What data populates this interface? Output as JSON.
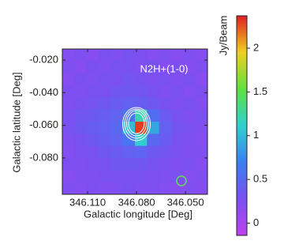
{
  "chart_data": {
    "type": "heatmap",
    "annotation": "N2H+(1-0)",
    "x_label": "Galactic longitude [Deg]",
    "y_label": "Galactic latitude [Deg]",
    "colorbar_label": "Jy/Beam",
    "xlim": [
      346.1255,
      346.0365
    ],
    "ylim": [
      -0.1023,
      -0.0132
    ],
    "xticks": [
      {
        "value": 346.11,
        "label": "346.110"
      },
      {
        "value": 346.08,
        "label": "346.080"
      },
      {
        "value": 346.05,
        "label": "346.050"
      }
    ],
    "yticks": [
      {
        "value": -0.02,
        "label": "-0.020"
      },
      {
        "value": -0.04,
        "label": "-0.040"
      },
      {
        "value": -0.06,
        "label": "-0.060"
      },
      {
        "value": -0.08,
        "label": "-0.080"
      }
    ],
    "clim": [
      -0.14,
      2.37
    ],
    "cticks": [
      0,
      0.5,
      1,
      1.5,
      2
    ],
    "colormap": [
      "#c040f0",
      "#7a50f0",
      "#3a80f0",
      "#30d0d0",
      "#60e040",
      "#f0d020",
      "#e02020"
    ],
    "z": [
      [
        0.22,
        0.25,
        0.2,
        0.28,
        0.24,
        0.3,
        0.26,
        0.22,
        0.25,
        0.2,
        0.24,
        0.22
      ],
      [
        0.25,
        0.2,
        0.27,
        0.24,
        0.3,
        0.28,
        0.25,
        0.3,
        0.22,
        0.26,
        0.21,
        0.25
      ],
      [
        0.2,
        0.28,
        0.25,
        0.3,
        0.27,
        0.32,
        0.3,
        0.26,
        0.28,
        0.24,
        0.27,
        0.2
      ],
      [
        0.26,
        0.24,
        0.3,
        0.28,
        0.33,
        0.35,
        0.33,
        0.3,
        0.25,
        0.28,
        0.22,
        0.26
      ],
      [
        0.24,
        0.3,
        0.32,
        0.35,
        0.38,
        0.42,
        0.4,
        0.35,
        0.3,
        0.26,
        0.28,
        0.23
      ],
      [
        0.3,
        0.33,
        0.36,
        0.4,
        0.45,
        0.6,
        1.2,
        0.55,
        0.38,
        0.3,
        0.25,
        0.27
      ],
      [
        0.28,
        0.35,
        0.4,
        0.42,
        0.5,
        1.0,
        2.3,
        0.9,
        0.42,
        0.32,
        0.28,
        0.24
      ],
      [
        0.25,
        0.3,
        0.35,
        0.4,
        0.45,
        0.6,
        1.1,
        0.5,
        0.38,
        0.3,
        0.26,
        0.22
      ],
      [
        0.22,
        0.28,
        0.3,
        0.35,
        0.38,
        0.42,
        0.45,
        0.36,
        0.32,
        0.28,
        0.24,
        0.25
      ],
      [
        0.26,
        0.24,
        0.28,
        0.3,
        0.33,
        0.35,
        0.34,
        0.3,
        0.27,
        0.25,
        0.27,
        0.22
      ],
      [
        0.2,
        0.25,
        0.24,
        0.27,
        0.3,
        0.28,
        0.3,
        0.26,
        0.24,
        0.28,
        0.22,
        0.25
      ],
      [
        0.24,
        0.22,
        0.26,
        0.23,
        0.25,
        0.27,
        0.24,
        0.25,
        0.22,
        0.2,
        0.24,
        0.21
      ]
    ]
  }
}
